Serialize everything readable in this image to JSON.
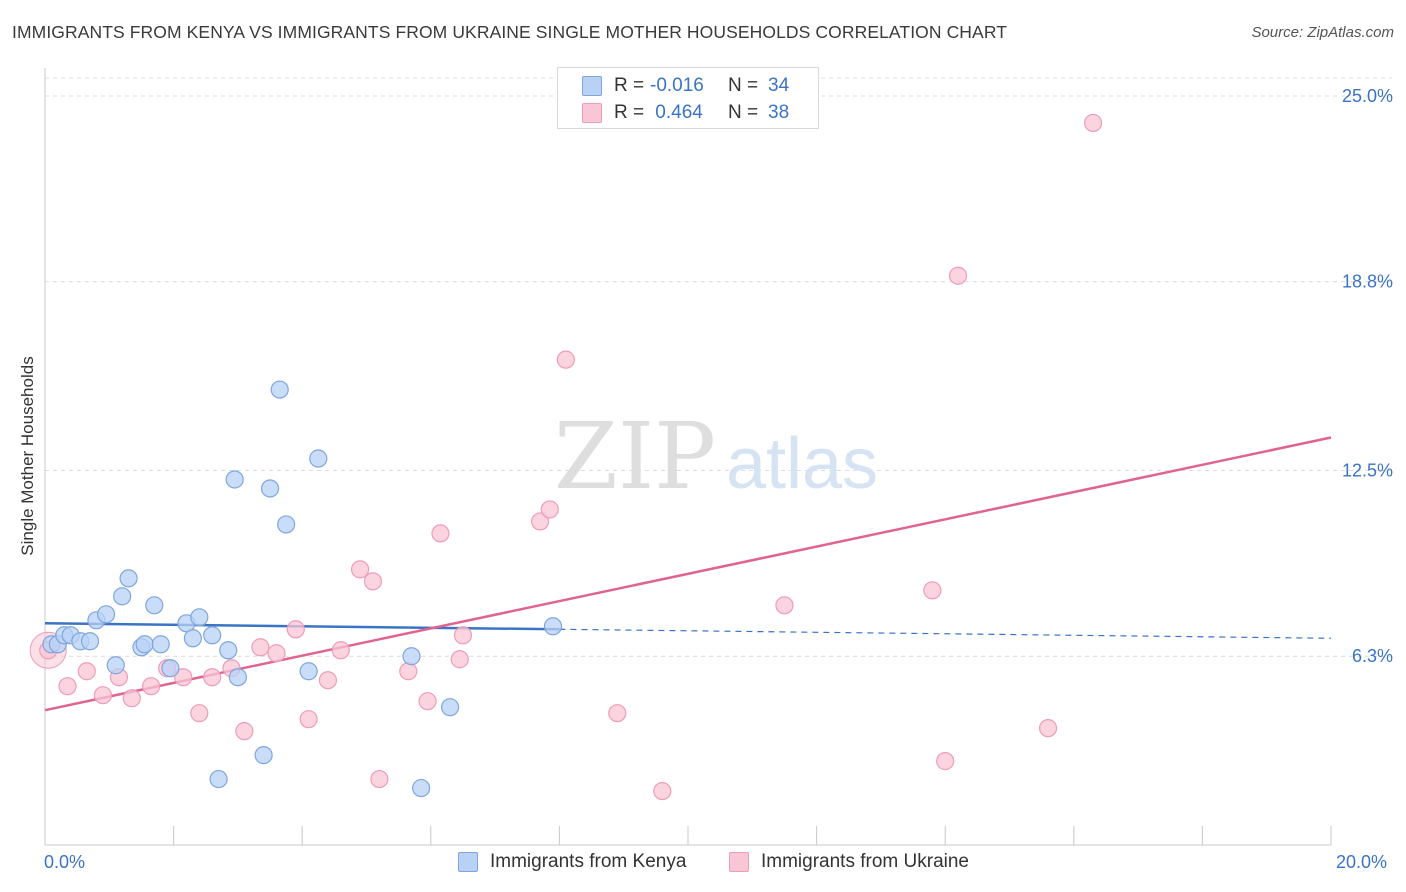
{
  "title": "IMMIGRANTS FROM KENYA VS IMMIGRANTS FROM UKRAINE SINGLE MOTHER HOUSEHOLDS CORRELATION CHART",
  "source": "Source: ZipAtlas.com",
  "watermark": {
    "zip": "ZIP",
    "atlas": "atlas"
  },
  "legend_top": {
    "rows": [
      {
        "r_label": "R =",
        "r_value": "-0.016",
        "n_label": "N =",
        "n_value": "34"
      },
      {
        "r_label": "R =",
        "r_value": " 0.464",
        "n_label": "N =",
        "n_value": "38"
      }
    ]
  },
  "colors": {
    "kenya_fill": "#b8d1f5",
    "kenya_stroke": "#7fa6dc",
    "kenya_line": "#3b74c4",
    "ukraine_fill": "#f9c6d6",
    "ukraine_stroke": "#ee9cb8",
    "ukraine_line": "#e0648e",
    "axis_label": "#3b74c4",
    "grid": "#dcdcdc"
  },
  "chart_data": {
    "type": "scatter",
    "title": "IMMIGRANTS FROM KENYA VS IMMIGRANTS FROM UKRAINE SINGLE MOTHER HOUSEHOLDS CORRELATION CHART",
    "xlabel": "",
    "ylabel": "Single Mother Households",
    "xlim": [
      0,
      20
    ],
    "ylim": [
      0,
      25.6
    ],
    "x_tick_labels": [
      "0.0%",
      "20.0%"
    ],
    "y_ticks": [
      6.3,
      12.5,
      18.8,
      25.0
    ],
    "y_tick_labels": [
      "6.3%",
      "12.5%",
      "18.8%",
      "25.0%"
    ],
    "grid": true,
    "legend_position": "bottom",
    "series": [
      {
        "name": "Immigrants from Kenya",
        "r": -0.016,
        "n": 34,
        "trend": {
          "x0": 0,
          "y0": 7.4,
          "x1": 20,
          "y1": 6.9,
          "solid_until_x": 8.0
        },
        "points": [
          [
            0.1,
            6.7
          ],
          [
            0.2,
            6.7
          ],
          [
            0.3,
            7.0
          ],
          [
            0.4,
            7.0
          ],
          [
            0.55,
            6.8
          ],
          [
            0.7,
            6.8
          ],
          [
            0.8,
            7.5
          ],
          [
            0.95,
            7.7
          ],
          [
            1.1,
            6.0
          ],
          [
            1.2,
            8.3
          ],
          [
            1.3,
            8.9
          ],
          [
            1.5,
            6.6
          ],
          [
            1.55,
            6.7
          ],
          [
            1.7,
            8.0
          ],
          [
            1.8,
            6.7
          ],
          [
            1.95,
            5.9
          ],
          [
            2.2,
            7.4
          ],
          [
            2.3,
            6.9
          ],
          [
            2.4,
            7.6
          ],
          [
            2.6,
            7.0
          ],
          [
            2.7,
            2.2
          ],
          [
            2.85,
            6.5
          ],
          [
            2.95,
            12.2
          ],
          [
            3.0,
            5.6
          ],
          [
            3.4,
            3.0
          ],
          [
            3.5,
            11.9
          ],
          [
            3.65,
            15.2
          ],
          [
            3.75,
            10.7
          ],
          [
            4.1,
            5.8
          ],
          [
            4.25,
            12.9
          ],
          [
            5.7,
            6.3
          ],
          [
            5.85,
            1.9
          ],
          [
            6.3,
            4.6
          ],
          [
            7.9,
            7.3
          ]
        ]
      },
      {
        "name": "Immigrants from Ukraine",
        "r": 0.464,
        "n": 38,
        "trend": {
          "x0": 0,
          "y0": 4.5,
          "x1": 20,
          "y1": 13.6
        },
        "points": [
          [
            0.05,
            6.5
          ],
          [
            0.35,
            5.3
          ],
          [
            0.65,
            5.8
          ],
          [
            0.9,
            5.0
          ],
          [
            1.15,
            5.6
          ],
          [
            1.35,
            4.9
          ],
          [
            1.65,
            5.3
          ],
          [
            1.9,
            5.9
          ],
          [
            2.15,
            5.6
          ],
          [
            2.4,
            4.4
          ],
          [
            2.6,
            5.6
          ],
          [
            2.9,
            5.9
          ],
          [
            3.1,
            3.8
          ],
          [
            3.35,
            6.6
          ],
          [
            3.6,
            6.4
          ],
          [
            3.9,
            7.2
          ],
          [
            4.1,
            4.2
          ],
          [
            4.4,
            5.5
          ],
          [
            4.6,
            6.5
          ],
          [
            4.9,
            9.2
          ],
          [
            5.1,
            8.8
          ],
          [
            5.2,
            2.2
          ],
          [
            5.65,
            5.8
          ],
          [
            5.95,
            4.8
          ],
          [
            6.15,
            10.4
          ],
          [
            6.45,
            6.2
          ],
          [
            6.5,
            7.0
          ],
          [
            7.7,
            10.8
          ],
          [
            7.85,
            11.2
          ],
          [
            8.1,
            16.2
          ],
          [
            8.9,
            4.4
          ],
          [
            9.6,
            1.8
          ],
          [
            11.5,
            8.0
          ],
          [
            13.8,
            8.5
          ],
          [
            14.0,
            2.8
          ],
          [
            14.2,
            19.0
          ],
          [
            15.6,
            3.9
          ],
          [
            16.3,
            24.1
          ]
        ]
      }
    ]
  },
  "legend_bottom": {
    "items": [
      {
        "label": "Immigrants from Kenya"
      },
      {
        "label": "Immigrants from Ukraine"
      }
    ]
  }
}
